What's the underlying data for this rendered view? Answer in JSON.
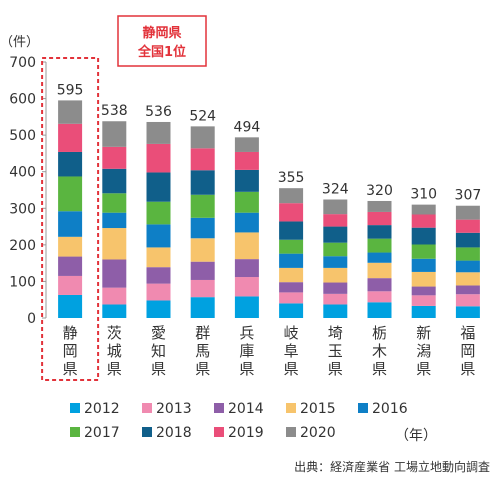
{
  "chart_data": {
    "type": "bar",
    "stacked": true,
    "unit_label": "（件）",
    "ylim": [
      0,
      700
    ],
    "yticks": [
      0,
      100,
      200,
      300,
      400,
      500,
      600,
      700
    ],
    "categories": [
      "静岡県",
      "茨城県",
      "愛知県",
      "群馬県",
      "兵庫県",
      "岐阜県",
      "埼玉県",
      "栃木県",
      "新潟県",
      "福岡県"
    ],
    "totals": [
      595,
      538,
      536,
      524,
      494,
      355,
      324,
      320,
      310,
      307
    ],
    "series": [
      {
        "name": "2012",
        "color": "#00a1e0",
        "values": [
          63,
          37,
          48,
          57,
          59,
          40,
          37,
          43,
          33,
          32
        ]
      },
      {
        "name": "2013",
        "color": "#f08ab0",
        "values": [
          52,
          46,
          46,
          47,
          53,
          30,
          29,
          30,
          29,
          33
        ]
      },
      {
        "name": "2014",
        "color": "#8e5ea8",
        "values": [
          53,
          77,
          45,
          50,
          49,
          28,
          31,
          36,
          24,
          24
        ]
      },
      {
        "name": "2015",
        "color": "#f7c46c",
        "values": [
          54,
          86,
          54,
          64,
          73,
          39,
          40,
          42,
          40,
          36
        ]
      },
      {
        "name": "2016",
        "color": "#0e7fc6",
        "values": [
          70,
          42,
          63,
          56,
          54,
          39,
          32,
          28,
          36,
          32
        ]
      },
      {
        "name": "2017",
        "color": "#5ab540",
        "values": [
          95,
          53,
          62,
          63,
          57,
          38,
          37,
          38,
          39,
          36
        ]
      },
      {
        "name": "2018",
        "color": "#105f8a",
        "values": [
          67,
          67,
          80,
          67,
          60,
          50,
          44,
          37,
          46,
          40
        ]
      },
      {
        "name": "2019",
        "color": "#ea4e79",
        "values": [
          77,
          60,
          78,
          60,
          49,
          50,
          34,
          36,
          36,
          36
        ]
      },
      {
        "name": "2020",
        "color": "#8c8c8c",
        "values": [
          64,
          70,
          60,
          60,
          40,
          41,
          40,
          30,
          27,
          38
        ]
      }
    ],
    "legend_suffix": "（年）",
    "callout": [
      "静岡県",
      "全国1位"
    ],
    "source": "出典：経済産業省 工場立地動向調査"
  }
}
